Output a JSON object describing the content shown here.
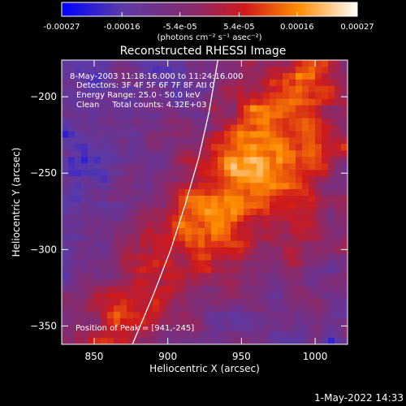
{
  "chart_data": {
    "type": "heatmap",
    "title": "Reconstructed RHESSI Image",
    "xlabel": "Heliocentric X (arcsec)",
    "ylabel": "Heliocentric Y (arcsec)",
    "xlim": [
      828,
      1022
    ],
    "ylim": [
      -362,
      -176
    ],
    "x_ticks": [
      850,
      900,
      950,
      1000
    ],
    "y_ticks": [
      -200,
      -250,
      -300,
      -350
    ],
    "colorbar": {
      "range": [
        -0.00027,
        0.00027
      ],
      "ticks": [
        {
          "value": -0.00027,
          "label": "-0.00027"
        },
        {
          "value": -0.00016,
          "label": "-0.00016"
        },
        {
          "value": -5.4e-05,
          "label": "-5.4e-05"
        },
        {
          "value": 5.4e-05,
          "label": "5.4e-05"
        },
        {
          "value": 0.00016,
          "label": "0.00016"
        },
        {
          "value": 0.00027,
          "label": "0.00027"
        }
      ],
      "units_label": "(photons cm⁻² s⁻¹ asec⁻²)",
      "colors": [
        "#0000ff",
        "#5a3aa8",
        "#8a2a6a",
        "#d01a1a",
        "#ff8c00",
        "#ffffff"
      ]
    },
    "annotations": [
      "8-May-2003 11:18:16.000 to 11:24:16.000",
      "Detectors: 3F 4F 5F 6F 7F 8F AtI 0",
      "Energy Range: 25.0 - 50.0 keV",
      "Clean     Total counts: 4.32E+03"
    ],
    "peak_label": "Position of Peak = [941,-245]",
    "peak_position": [
      941,
      -245
    ],
    "limb_curve": [
      [
        876,
        -362
      ],
      [
        890,
        -330
      ],
      [
        902,
        -300
      ],
      [
        912,
        -270
      ],
      [
        921,
        -240
      ],
      [
        928,
        -210
      ],
      [
        934,
        -176
      ]
    ],
    "timestamp": "1-May-2022 14:33"
  }
}
